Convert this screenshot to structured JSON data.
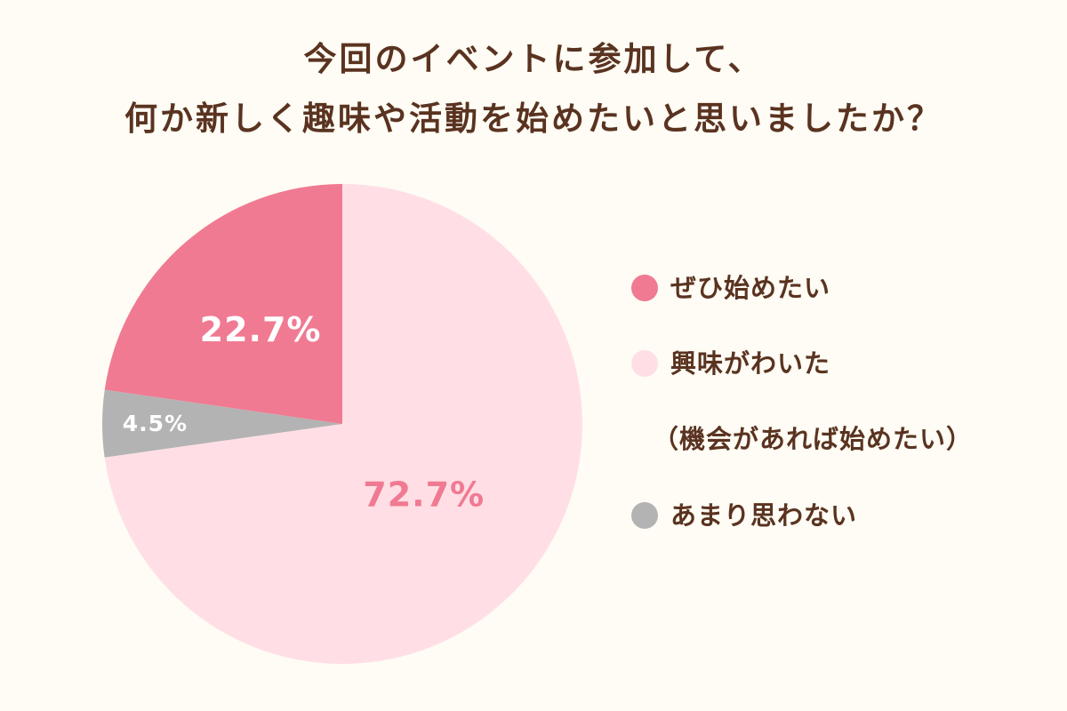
{
  "chart_data": {
    "type": "pie",
    "title_lines": [
      "今回のイベントに参加して、",
      "何か新しく趣味や活動を始めたいと思いましたか？"
    ],
    "slices": [
      {
        "label": "ぜひ始めたい",
        "value": 22.7,
        "value_label": "22.7%",
        "color": "#f07a92",
        "label_color": "#ffffff"
      },
      {
        "label": "興味がわいた",
        "sublabel": "（機会があれば始めたい）",
        "value": 72.7,
        "value_label": "72.7%",
        "color": "#ffdfe5",
        "label_color": "#f07a92"
      },
      {
        "label": "あまり思わない",
        "value": 4.5,
        "value_label": "4.5%",
        "color": "#b3b3b3",
        "label_color": "#ffffff"
      }
    ],
    "legend_placement": "right",
    "start_angle": "12 o'clock",
    "direction": "clockwise, starting with 興味がわいた"
  }
}
